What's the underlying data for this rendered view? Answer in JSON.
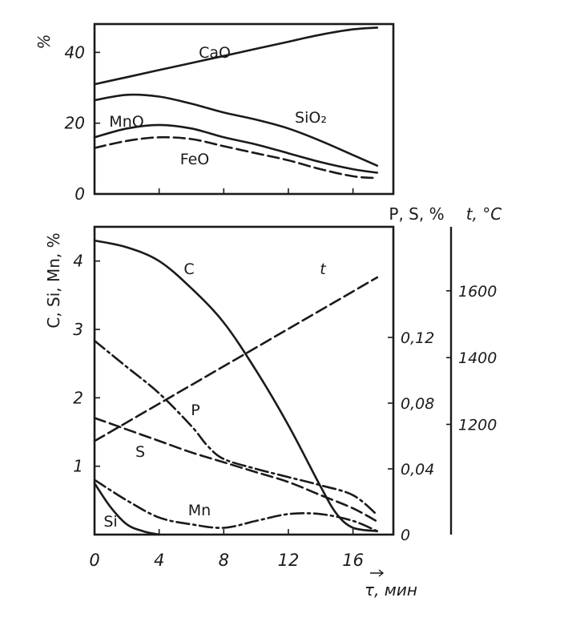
{
  "chart_data": [
    {
      "type": "line",
      "ylabel": "%",
      "ylim": [
        0,
        48
      ],
      "yticks": [
        "0",
        "20",
        "40"
      ],
      "xlim": [
        0,
        18
      ],
      "grid": false,
      "series": [
        {
          "name": "CaO",
          "style": "solid",
          "x": [
            0,
            2,
            4,
            6,
            8,
            10,
            12,
            14,
            16,
            17.5
          ],
          "y": [
            31,
            33,
            35,
            37,
            39,
            41,
            43,
            45,
            46.5,
            47
          ]
        },
        {
          "name": "SiO₂",
          "style": "solid",
          "x": [
            0,
            2,
            4,
            6,
            8,
            10,
            12,
            14,
            16,
            17.5
          ],
          "y": [
            26.5,
            28,
            27.5,
            25.5,
            23,
            21,
            18.5,
            15,
            11,
            8
          ]
        },
        {
          "name": "MnO",
          "style": "solid",
          "x": [
            0,
            2,
            4,
            6,
            8,
            10,
            12,
            14,
            16,
            17.5
          ],
          "y": [
            16,
            18.5,
            19.5,
            18.5,
            16,
            14,
            11.5,
            9,
            7,
            6
          ]
        },
        {
          "name": "FeO",
          "style": "dash",
          "x": [
            0,
            2,
            4,
            6,
            8,
            10,
            12,
            14,
            16,
            17.5
          ],
          "y": [
            13,
            15,
            16,
            15.5,
            13.5,
            11.5,
            9.5,
            7,
            5,
            4.5
          ]
        }
      ]
    },
    {
      "type": "line",
      "xlabel": "τ, мин",
      "ylabel": "C, Si, Mn, %",
      "ylabel_right_1": "P, S, %",
      "ylabel_right_2": "t, °C",
      "xlim": [
        0,
        18
      ],
      "ylim": [
        0,
        4.5
      ],
      "xticks": [
        "0",
        "4",
        "8",
        "12",
        "16"
      ],
      "yticks": [
        "1",
        "2",
        "3",
        "4"
      ],
      "yticks_right_1": [
        "0",
        "0,04",
        "0,08",
        "0,12"
      ],
      "yticks_right_2": [
        "1200",
        "1400",
        "1600"
      ],
      "grid": false,
      "series": [
        {
          "name": "C",
          "axis": "left",
          "style": "solid",
          "x": [
            0,
            2,
            4,
            6,
            8,
            10,
            12,
            14,
            15,
            16,
            17.5
          ],
          "y": [
            4.3,
            4.2,
            4.0,
            3.6,
            3.1,
            2.4,
            1.6,
            0.7,
            0.3,
            0.1,
            0.05
          ]
        },
        {
          "name": "Si",
          "axis": "left",
          "style": "solid",
          "x": [
            0,
            1,
            2,
            3,
            4
          ],
          "y": [
            0.75,
            0.4,
            0.15,
            0.05,
            0
          ]
        },
        {
          "name": "Mn",
          "axis": "left",
          "style": "dashdot",
          "x": [
            0,
            2,
            4,
            6,
            8,
            10,
            12,
            14,
            16,
            17.5
          ],
          "y": [
            0.8,
            0.5,
            0.25,
            0.15,
            0.1,
            0.2,
            0.3,
            0.3,
            0.2,
            0.05
          ]
        },
        {
          "name": "P",
          "axis": "right_pct",
          "style": "dashdot",
          "x": [
            0,
            2,
            4,
            6,
            7,
            8,
            10,
            12,
            14,
            16,
            17.5
          ],
          "y": [
            0.118,
            0.102,
            0.086,
            0.066,
            0.054,
            0.046,
            0.04,
            0.035,
            0.03,
            0.024,
            0.012
          ]
        },
        {
          "name": "S",
          "axis": "right_pct",
          "style": "dash",
          "x": [
            0,
            2,
            4,
            6,
            8,
            10,
            12,
            14,
            16,
            17.5
          ],
          "y": [
            0.071,
            0.064,
            0.057,
            0.05,
            0.044,
            0.038,
            0.032,
            0.024,
            0.016,
            0.008
          ]
        },
        {
          "name": "t",
          "axis": "right_temp",
          "style": "dash",
          "x": [
            0,
            17.5
          ],
          "y": [
            1150,
            1640
          ]
        }
      ]
    }
  ]
}
